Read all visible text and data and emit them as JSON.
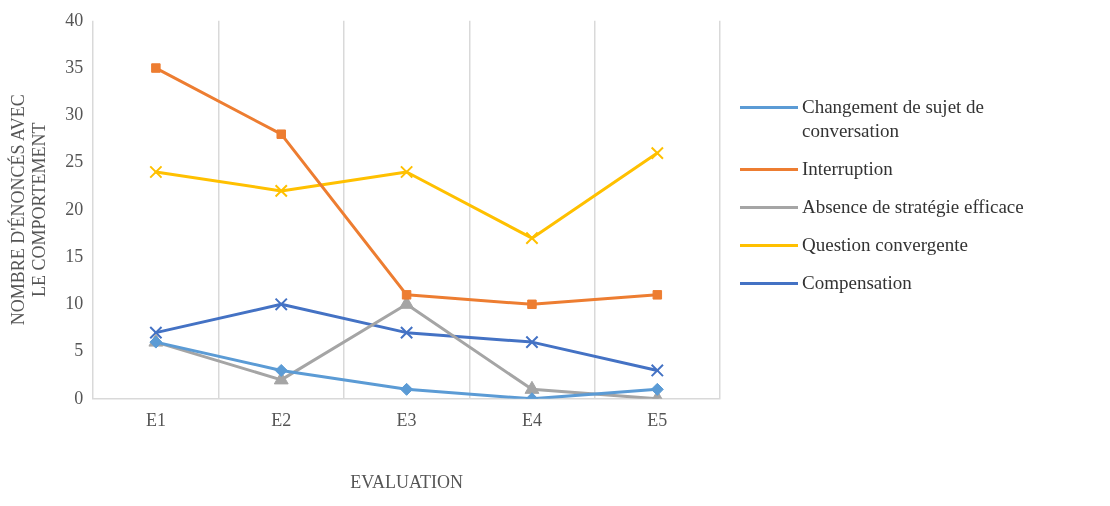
{
  "chart_data": {
    "type": "line",
    "xlabel": "EVALUATION",
    "ylabel": "NOMBRE D'ÉNONCÉS AVEC LE COMPORTEMENT",
    "categories": [
      "E1",
      "E2",
      "E3",
      "E4",
      "E5"
    ],
    "series": [
      {
        "name": "Changement de sujet de conversation",
        "color": "#5b9bd5",
        "marker": "diamond",
        "values": [
          6,
          3,
          1,
          0,
          1
        ]
      },
      {
        "name": "Interruption",
        "color": "#ed7d31",
        "marker": "square",
        "values": [
          35,
          28,
          11,
          10,
          11
        ]
      },
      {
        "name": "Absence de stratégie efficace",
        "color": "#a5a5a5",
        "marker": "triangle",
        "values": [
          6,
          2,
          10,
          1,
          0
        ]
      },
      {
        "name": "Question convergente",
        "color": "#ffc000",
        "marker": "cross",
        "values": [
          24,
          22,
          24,
          17,
          26
        ]
      },
      {
        "name": "Compensation",
        "color": "#4472c4",
        "marker": "cross",
        "values": [
          7,
          10,
          7,
          6,
          3
        ]
      }
    ],
    "ylim": [
      0,
      40
    ],
    "yticks": [
      0,
      5,
      10,
      15,
      20,
      25,
      30,
      35,
      40
    ],
    "grid": "x",
    "legend": "right"
  }
}
